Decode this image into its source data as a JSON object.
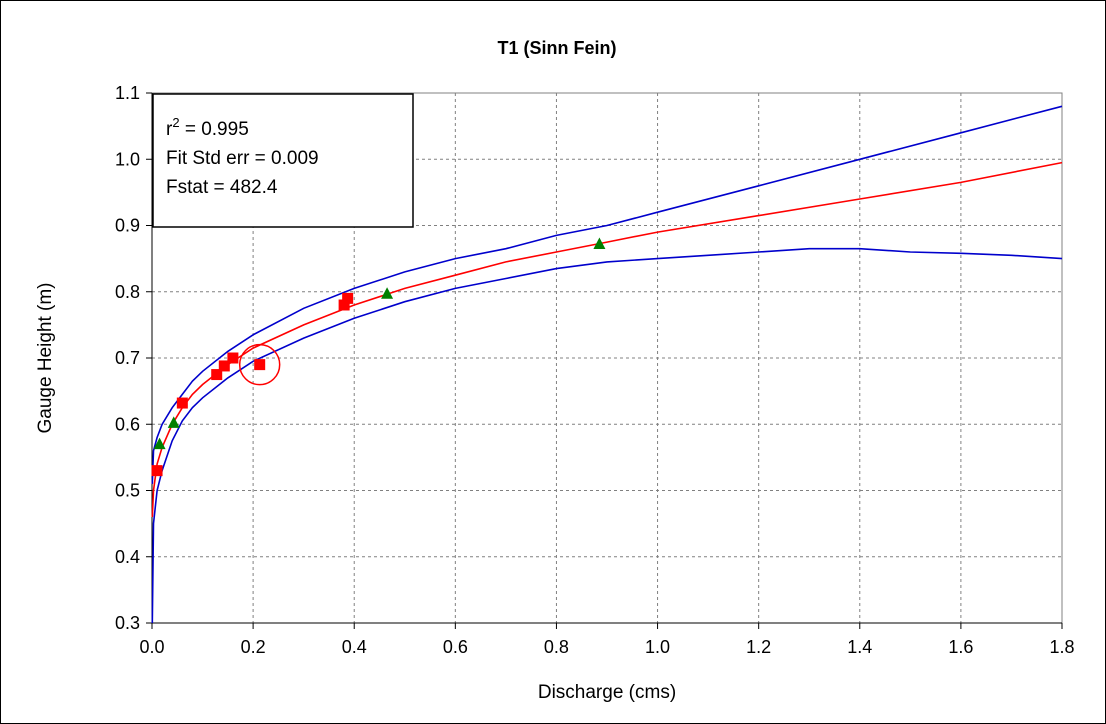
{
  "chart_data": {
    "type": "scatter",
    "title": "T1 (Sinn Fein)",
    "xlabel": "Discharge (cms)",
    "ylabel": "Gauge Height (m)",
    "xlim": [
      0,
      1.8
    ],
    "ylim": [
      0.3,
      1.1
    ],
    "x_ticks": [
      "0.0",
      "0.2",
      "0.4",
      "0.6",
      "0.8",
      "1.0",
      "1.2",
      "1.4",
      "1.6",
      "1.8"
    ],
    "y_ticks": [
      "0.3",
      "0.4",
      "0.5",
      "0.6",
      "0.7",
      "0.8",
      "0.9",
      "1.0",
      "1.1"
    ],
    "grid": true,
    "stats_box": {
      "r2_prefix": "r",
      "r2_sup": "2",
      "r2_value": " = 0.995",
      "fit_std_err": "Fit Std err = 0.009",
      "fstat": "Fstat = 482.4"
    },
    "series": [
      {
        "kind": "line",
        "color": "#ff0000",
        "points": [
          [
            0.0005,
            0.46
          ],
          [
            0.003,
            0.5
          ],
          [
            0.01,
            0.54
          ],
          [
            0.02,
            0.565
          ],
          [
            0.04,
            0.6
          ],
          [
            0.06,
            0.625
          ],
          [
            0.08,
            0.645
          ],
          [
            0.1,
            0.66
          ],
          [
            0.15,
            0.69
          ],
          [
            0.2,
            0.715
          ],
          [
            0.3,
            0.75
          ],
          [
            0.4,
            0.78
          ],
          [
            0.5,
            0.805
          ],
          [
            0.6,
            0.825
          ],
          [
            0.7,
            0.845
          ],
          [
            0.8,
            0.86
          ],
          [
            0.9,
            0.875
          ],
          [
            1.0,
            0.89
          ],
          [
            1.2,
            0.915
          ],
          [
            1.4,
            0.94
          ],
          [
            1.6,
            0.965
          ],
          [
            1.8,
            0.995
          ]
        ]
      },
      {
        "kind": "line",
        "color": "#0000cc",
        "points": [
          [
            0.0005,
            0.51
          ],
          [
            0.003,
            0.56
          ],
          [
            0.01,
            0.58
          ],
          [
            0.02,
            0.6
          ],
          [
            0.04,
            0.625
          ],
          [
            0.06,
            0.645
          ],
          [
            0.08,
            0.665
          ],
          [
            0.1,
            0.68
          ],
          [
            0.15,
            0.71
          ],
          [
            0.2,
            0.735
          ],
          [
            0.3,
            0.775
          ],
          [
            0.4,
            0.805
          ],
          [
            0.5,
            0.83
          ],
          [
            0.6,
            0.85
          ],
          [
            0.7,
            0.865
          ],
          [
            0.8,
            0.885
          ],
          [
            0.9,
            0.9
          ],
          [
            1.0,
            0.92
          ],
          [
            1.2,
            0.96
          ],
          [
            1.4,
            1.0
          ],
          [
            1.6,
            1.04
          ],
          [
            1.8,
            1.08
          ]
        ]
      },
      {
        "kind": "line",
        "color": "#0000cc",
        "points": [
          [
            0.0005,
            0.3
          ],
          [
            0.003,
            0.45
          ],
          [
            0.01,
            0.5
          ],
          [
            0.02,
            0.53
          ],
          [
            0.04,
            0.575
          ],
          [
            0.06,
            0.605
          ],
          [
            0.08,
            0.625
          ],
          [
            0.1,
            0.64
          ],
          [
            0.15,
            0.67
          ],
          [
            0.2,
            0.695
          ],
          [
            0.3,
            0.73
          ],
          [
            0.4,
            0.76
          ],
          [
            0.5,
            0.785
          ],
          [
            0.6,
            0.805
          ],
          [
            0.7,
            0.82
          ],
          [
            0.8,
            0.835
          ],
          [
            0.9,
            0.845
          ],
          [
            1.0,
            0.85
          ],
          [
            1.1,
            0.855
          ],
          [
            1.2,
            0.86
          ],
          [
            1.3,
            0.865
          ],
          [
            1.4,
            0.865
          ],
          [
            1.5,
            0.86
          ],
          [
            1.6,
            0.858
          ],
          [
            1.7,
            0.855
          ],
          [
            1.8,
            0.85
          ]
        ]
      },
      {
        "kind": "square",
        "color": "#ff0000",
        "points": [
          [
            0.01,
            0.53
          ],
          [
            0.06,
            0.632
          ],
          [
            0.128,
            0.675
          ],
          [
            0.143,
            0.688
          ],
          [
            0.16,
            0.7
          ],
          [
            0.213,
            0.69
          ],
          [
            0.38,
            0.78
          ],
          [
            0.387,
            0.79
          ]
        ]
      },
      {
        "kind": "triangle",
        "color": "#008000",
        "points": [
          [
            0.015,
            0.57
          ],
          [
            0.043,
            0.602
          ],
          [
            0.465,
            0.797
          ],
          [
            0.885,
            0.872
          ]
        ]
      }
    ],
    "annotations": [
      {
        "kind": "circle",
        "color": "#ff0000",
        "center": [
          0.213,
          0.69
        ]
      }
    ]
  }
}
